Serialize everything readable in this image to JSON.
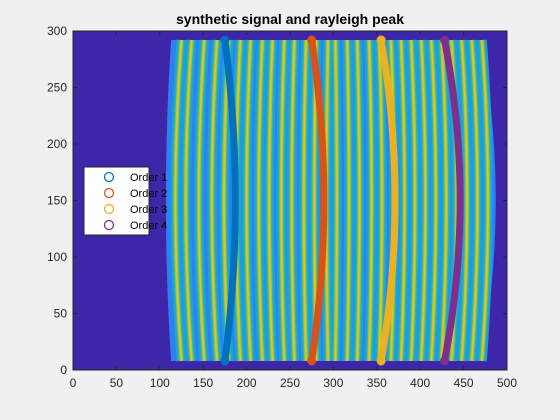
{
  "chart_data": {
    "type": "scatter",
    "title": "synthetic signal and rayleigh peak",
    "xlabel": "",
    "ylabel": "",
    "xlim": [
      0,
      500
    ],
    "ylim": [
      0,
      300
    ],
    "xticks": [
      0,
      50,
      100,
      150,
      200,
      250,
      300,
      350,
      400,
      450,
      500
    ],
    "yticks": [
      0,
      50,
      100,
      150,
      200,
      250,
      300
    ],
    "grid": false,
    "legend_position": "left",
    "background": {
      "type": "heatmap",
      "colormap": "parula",
      "fill_color": "#3e26a8",
      "y_range": [
        8,
        292
      ],
      "left_edge_x_at_ends": 113,
      "left_edge_x_at_center": 107,
      "right_edge_x_at_ends": 470,
      "right_edge_x_at_center": 487,
      "fringe_x_at_center": [
        118,
        130,
        145,
        160,
        174,
        188,
        200,
        214,
        226,
        240,
        252,
        266,
        278,
        292,
        304,
        318,
        330,
        344,
        356,
        370,
        382,
        394,
        406,
        418,
        430,
        442,
        454,
        466,
        478
      ],
      "fringe_bow": 8
    },
    "series": [
      {
        "name": "Order 1",
        "color": "#0072bd",
        "x_at_ends": 175,
        "x_at_center": 187,
        "y_range": [
          8,
          292
        ]
      },
      {
        "name": "Order 2",
        "color": "#d95319",
        "x_at_ends": 275,
        "x_at_center": 289,
        "y_range": [
          8,
          292
        ]
      },
      {
        "name": "Order 3",
        "color": "#edb120",
        "x_at_ends": 355,
        "x_at_center": 371,
        "y_range": [
          8,
          292
        ]
      },
      {
        "name": "Order 4",
        "color": "#7e2f8e",
        "x_at_ends": 428,
        "x_at_center": 446,
        "y_range": [
          8,
          292
        ]
      }
    ]
  }
}
